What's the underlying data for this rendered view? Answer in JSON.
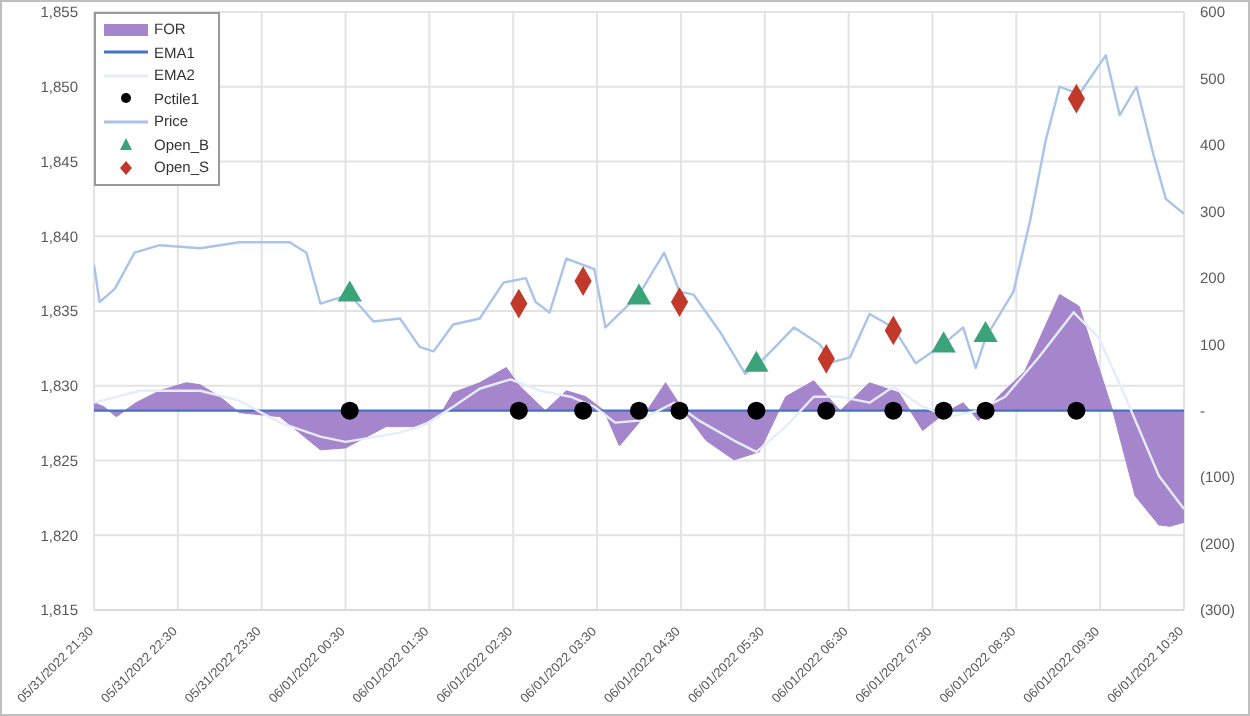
{
  "chart_data": {
    "type": "line",
    "xlim": [
      "2022-05-31T21:30",
      "2022-06-01T10:30"
    ],
    "xticks": [
      {
        "value": "2022-05-31T21:30",
        "label": "05/31/2022 21:30"
      },
      {
        "value": "2022-05-31T22:30",
        "label": "05/31/2022 22:30"
      },
      {
        "value": "2022-05-31T23:30",
        "label": "05/31/2022 23:30"
      },
      {
        "value": "2022-06-01T00:30",
        "label": "06/01/2022 00:30"
      },
      {
        "value": "2022-06-01T01:30",
        "label": "06/01/2022 01:30"
      },
      {
        "value": "2022-06-01T02:30",
        "label": "06/01/2022 02:30"
      },
      {
        "value": "2022-06-01T03:30",
        "label": "06/01/2022 03:30"
      },
      {
        "value": "2022-06-01T04:30",
        "label": "06/01/2022 04:30"
      },
      {
        "value": "2022-06-01T05:30",
        "label": "06/01/2022 05:30"
      },
      {
        "value": "2022-06-01T06:30",
        "label": "06/01/2022 06:30"
      },
      {
        "value": "2022-06-01T07:30",
        "label": "06/01/2022 07:30"
      },
      {
        "value": "2022-06-01T08:30",
        "label": "06/01/2022 08:30"
      },
      {
        "value": "2022-06-01T09:30",
        "label": "06/01/2022 09:30"
      },
      {
        "value": "2022-06-01T10:30",
        "label": "06/01/2022 10:30"
      }
    ],
    "ylim": [
      1815,
      1855
    ],
    "yticks": [
      {
        "value": 1815,
        "label": "1,815"
      },
      {
        "value": 1820,
        "label": "1,820"
      },
      {
        "value": 1825,
        "label": "1,825"
      },
      {
        "value": 1830,
        "label": "1,830"
      },
      {
        "value": 1835,
        "label": "1,835"
      },
      {
        "value": 1840,
        "label": "1,840"
      },
      {
        "value": 1845,
        "label": "1,845"
      },
      {
        "value": 1850,
        "label": "1,850"
      },
      {
        "value": 1855,
        "label": "1,855"
      }
    ],
    "y2lim": [
      -300,
      600
    ],
    "y2ticks": [
      {
        "value": -300,
        "label": "(300)"
      },
      {
        "value": -200,
        "label": "(200)"
      },
      {
        "value": -100,
        "label": "(100)"
      },
      {
        "value": 0,
        "label": "-"
      },
      100,
      200,
      300,
      400,
      500,
      600
    ],
    "grid": true,
    "legend": "top left",
    "series": [
      {
        "name": "FOR",
        "type": "area",
        "axis": "y2",
        "color": "#a585cc",
        "x": [
          "2022-05-31T21:30",
          "2022-05-31T21:37",
          "2022-05-31T21:46",
          "2022-05-31T21:52",
          "2022-05-31T22:00",
          "2022-05-31T22:17",
          "2022-05-31T22:36",
          "2022-05-31T22:46",
          "2022-05-31T23:00",
          "2022-05-31T23:14",
          "2022-05-31T23:43",
          "2022-06-01T00:12",
          "2022-06-01T00:30",
          "2022-06-01T00:59",
          "2022-06-01T01:19",
          "2022-06-01T01:37",
          "2022-06-01T01:47",
          "2022-06-01T02:06",
          "2022-06-01T02:25",
          "2022-06-01T02:35",
          "2022-06-01T02:53",
          "2022-06-01T03:08",
          "2022-06-01T03:22",
          "2022-06-01T03:35",
          "2022-06-01T03:46",
          "2022-06-01T04:00",
          "2022-06-01T04:19",
          "2022-06-01T04:32",
          "2022-06-01T04:48",
          "2022-06-01T05:08",
          "2022-06-01T05:26",
          "2022-06-01T05:45",
          "2022-06-01T06:05",
          "2022-06-01T06:24",
          "2022-06-01T06:45",
          "2022-06-01T07:06",
          "2022-06-01T07:23",
          "2022-06-01T07:39",
          "2022-06-01T07:52",
          "2022-06-01T08:03",
          "2022-06-01T08:17",
          "2022-06-01T08:36",
          "2022-06-01T09:01",
          "2022-06-01T09:15",
          "2022-06-01T09:29",
          "2022-06-01T09:39",
          "2022-06-01T09:55",
          "2022-06-01T10:12",
          "2022-06-01T10:20",
          "2022-06-01T10:30"
        ],
        "values": [
          12,
          6,
          -9,
          0,
          12,
          30,
          42,
          39,
          21,
          -3,
          -9,
          -59,
          -56,
          -24,
          -24,
          -9,
          27,
          42,
          65,
          36,
          0,
          30,
          21,
          0,
          -53,
          -18,
          42,
          0,
          -45,
          -74,
          -62,
          21,
          45,
          0,
          42,
          27,
          -30,
          -3,
          12,
          -15,
          21,
          59,
          175,
          157,
          65,
          0,
          -128,
          -172,
          -174,
          -168
        ]
      },
      {
        "name": "EMA1",
        "type": "line",
        "axis": "y2",
        "color": "#4472c4",
        "x": [
          "2022-05-31T21:30",
          "2022-06-01T10:30"
        ],
        "values": [
          0,
          0
        ]
      },
      {
        "name": "EMA2",
        "type": "line",
        "axis": "y2",
        "color": "#e4edf9",
        "x": [
          "2022-05-31T21:30",
          "2022-05-31T22:03",
          "2022-05-31T22:46",
          "2022-05-31T23:14",
          "2022-05-31T23:43",
          "2022-06-01T00:12",
          "2022-06-01T00:30",
          "2022-06-01T01:09",
          "2022-06-01T01:27",
          "2022-06-01T01:47",
          "2022-06-01T02:06",
          "2022-06-01T02:28",
          "2022-06-01T02:49",
          "2022-06-01T03:11",
          "2022-06-01T03:28",
          "2022-06-01T03:43",
          "2022-06-01T04:00",
          "2022-06-01T04:25",
          "2022-06-01T04:43",
          "2022-06-01T05:08",
          "2022-06-01T05:24",
          "2022-06-01T05:45",
          "2022-06-01T06:05",
          "2022-06-01T06:24",
          "2022-06-01T06:45",
          "2022-06-01T07:02",
          "2022-06-01T07:23",
          "2022-06-01T07:42",
          "2022-06-01T08:03",
          "2022-06-01T08:22",
          "2022-06-01T08:46",
          "2022-06-01T09:11",
          "2022-06-01T09:29",
          "2022-06-01T09:48",
          "2022-06-01T10:12",
          "2022-06-01T10:30"
        ],
        "values": [
          12,
          30,
          30,
          15,
          -18,
          -39,
          -47,
          -33,
          -21,
          6,
          33,
          47,
          30,
          21,
          6,
          -18,
          -15,
          12,
          -15,
          -45,
          -62,
          -24,
          21,
          21,
          12,
          36,
          6,
          -9,
          0,
          21,
          80,
          148,
          110,
          21,
          -98,
          -148
        ]
      },
      {
        "name": "Pctile1",
        "type": "scatter",
        "axis": "y2",
        "color": "#000000",
        "marker": "circle",
        "x": [
          "2022-06-01T00:33",
          "2022-06-01T02:34",
          "2022-06-01T03:20",
          "2022-06-01T04:00",
          "2022-06-01T04:29",
          "2022-06-01T05:24",
          "2022-06-01T06:14",
          "2022-06-01T07:02",
          "2022-06-01T07:38",
          "2022-06-01T08:08",
          "2022-06-01T09:13"
        ],
        "values": [
          0,
          0,
          0,
          0,
          0,
          0,
          0,
          0,
          0,
          0,
          0
        ]
      },
      {
        "name": "Price",
        "color": "#a9c4e8",
        "x": [
          "2022-05-31T21:30",
          "2022-05-31T21:34",
          "2022-05-31T21:45",
          "2022-05-31T21:59",
          "2022-05-31T22:17",
          "2022-05-31T22:46",
          "2022-05-31T23:14",
          "2022-05-31T23:50",
          "2022-06-01T00:02",
          "2022-06-01T00:12",
          "2022-06-01T00:33",
          "2022-06-01T00:50",
          "2022-06-01T01:09",
          "2022-06-01T01:23",
          "2022-06-01T01:33",
          "2022-06-01T01:47",
          "2022-06-01T02:06",
          "2022-06-01T02:23",
          "2022-06-01T02:39",
          "2022-06-01T02:46",
          "2022-06-01T02:56",
          "2022-06-01T03:08",
          "2022-06-01T03:28",
          "2022-06-01T03:36",
          "2022-06-01T04:00",
          "2022-06-01T04:18",
          "2022-06-01T04:29",
          "2022-06-01T04:39",
          "2022-06-01T04:58",
          "2022-06-01T05:16",
          "2022-06-01T05:26",
          "2022-06-01T05:51",
          "2022-06-01T06:09",
          "2022-06-01T06:19",
          "2022-06-01T06:31",
          "2022-06-01T06:45",
          "2022-06-01T07:02",
          "2022-06-01T07:18",
          "2022-06-01T07:38",
          "2022-06-01T07:52",
          "2022-06-01T08:01",
          "2022-06-01T08:08",
          "2022-06-01T08:28",
          "2022-06-01T08:40",
          "2022-06-01T08:51",
          "2022-06-01T09:01",
          "2022-06-01T09:15",
          "2022-06-01T09:34",
          "2022-06-01T09:44",
          "2022-06-01T09:56",
          "2022-06-01T10:08",
          "2022-06-01T10:17",
          "2022-06-01T10:30"
        ],
        "values": [
          1838.1,
          1835.6,
          1836.5,
          1838.9,
          1839.4,
          1839.2,
          1839.6,
          1839.6,
          1838.9,
          1835.5,
          1836.1,
          1834.3,
          1834.5,
          1832.6,
          1832.3,
          1834.1,
          1834.5,
          1836.9,
          1837.2,
          1835.6,
          1834.9,
          1838.5,
          1837.8,
          1833.9,
          1836.1,
          1838.9,
          1836.3,
          1836.1,
          1833.6,
          1830.8,
          1831.5,
          1833.9,
          1832.8,
          1831.6,
          1831.9,
          1834.8,
          1833.9,
          1831.5,
          1832.8,
          1833.9,
          1831.2,
          1833.2,
          1836.3,
          1841.1,
          1846.4,
          1850,
          1849.5,
          1852.1,
          1848.1,
          1850,
          1845.5,
          1842.5,
          1841.5
        ]
      },
      {
        "name": "Open_B",
        "type": "scatter",
        "color": "#3aa37a",
        "marker": "triangle",
        "x": [
          "2022-06-01T00:33",
          "2022-06-01T04:00",
          "2022-06-01T05:24",
          "2022-06-01T07:38",
          "2022-06-01T08:08"
        ],
        "values": [
          1836.1,
          1835.9,
          1831.4,
          1832.7,
          1833.4
        ]
      },
      {
        "name": "Open_S",
        "type": "scatter",
        "color": "#c0392b",
        "marker": "diamond",
        "x": [
          "2022-06-01T02:34",
          "2022-06-01T03:20",
          "2022-06-01T04:29",
          "2022-06-01T06:14",
          "2022-06-01T07:02",
          "2022-06-01T09:13"
        ],
        "values": [
          1835.5,
          1837,
          1835.6,
          1831.8,
          1833.7,
          1849.2
        ]
      }
    ]
  }
}
